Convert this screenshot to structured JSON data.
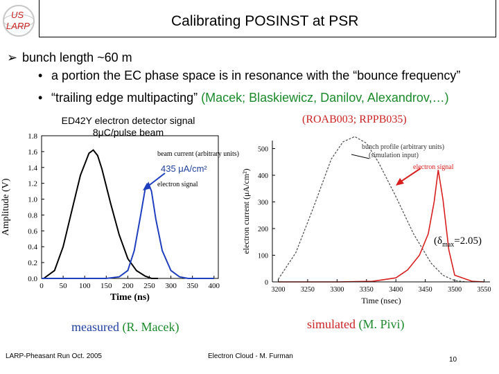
{
  "logo": {
    "line1": "US",
    "line2": "LARP"
  },
  "title": "Calibrating POSINST at PSR",
  "bullet_main": "bunch length ~60 m",
  "sub_bullets": [
    {
      "text": "a portion the EC phase space is in resonance with the “bounce frequency”",
      "attribution": ""
    },
    {
      "text": "“trailing edge multipacting”",
      "attribution": "(Macek; Blaskiewicz, Danilov, Alexandrov,…)"
    }
  ],
  "left_panel": {
    "caption_line1": "ED42Y electron detector signal",
    "caption_line2": "8μC/pulse beam",
    "annotation": "435 μA/cm²",
    "legend_beam": "beam current (arbitrary units)",
    "legend_electron": "electron signal",
    "bottom_label_main": "measured",
    "bottom_label_source": "(R. Macek)"
  },
  "right_panel": {
    "refs": "(ROAB003; RPPB035)",
    "legend_bunch_1": "bunch profile (arbitrary units)",
    "legend_bunch_2": "(simulation input)",
    "legend_electron": "electron signal",
    "delta_prefix": "(δ",
    "delta_sub": "max",
    "delta_suffix": "=2.05)",
    "bottom_label_main": "simulated",
    "bottom_label_source": "(M. Pivi)"
  },
  "chart_data": [
    {
      "type": "line",
      "xlabel": "Time (ns)",
      "ylabel": "Amplitude (V)",
      "xlim": [
        0,
        410
      ],
      "ylim": [
        0,
        1.8
      ],
      "x_ticks": [
        "0",
        "50",
        "100",
        "150",
        "200",
        "250",
        "300",
        "350",
        "400"
      ],
      "y_ticks": [
        "0.0",
        "0.2",
        "0.4",
        "0.6",
        "0.8",
        "1.0",
        "1.2",
        "1.4",
        "1.6",
        "1.8"
      ],
      "series": [
        {
          "name": "beam current (arbitrary units)",
          "color": "#000000",
          "x": [
            5,
            30,
            50,
            70,
            90,
            110,
            120,
            130,
            140,
            160,
            180,
            200,
            220,
            240,
            255,
            270
          ],
          "y": [
            0.0,
            0.1,
            0.4,
            0.85,
            1.3,
            1.58,
            1.62,
            1.55,
            1.38,
            0.95,
            0.55,
            0.25,
            0.1,
            0.03,
            0.0,
            0.0
          ]
        },
        {
          "name": "electron signal",
          "color": "#1f3fbf",
          "x": [
            0,
            150,
            180,
            200,
            215,
            230,
            240,
            248,
            255,
            265,
            280,
            300,
            320,
            340,
            360,
            380,
            400
          ],
          "y": [
            0.0,
            0.0,
            0.02,
            0.1,
            0.35,
            0.8,
            1.12,
            1.2,
            1.1,
            0.75,
            0.35,
            0.1,
            0.02,
            0.0,
            0.0,
            0.0,
            0.0
          ]
        }
      ]
    },
    {
      "type": "line",
      "xlabel": "Time (nsec)",
      "ylabel": "electron current (μA/cm²)",
      "xlim": [
        3190,
        3560
      ],
      "ylim": [
        0,
        530
      ],
      "x_ticks": [
        "3200",
        "3250",
        "3300",
        "3350",
        "3400",
        "3450",
        "3500",
        "3550"
      ],
      "y_ticks": [
        "0",
        "100",
        "200",
        "300",
        "400",
        "500"
      ],
      "series": [
        {
          "name": "bunch profile (arbitrary units)",
          "color": "#555555",
          "x": [
            3200,
            3230,
            3260,
            3290,
            3310,
            3330,
            3350,
            3370,
            3400,
            3430,
            3460,
            3480,
            3500,
            3520
          ],
          "y": [
            10,
            110,
            280,
            460,
            525,
            545,
            520,
            450,
            320,
            180,
            70,
            25,
            5,
            0
          ]
        },
        {
          "name": "electron signal",
          "color": "#d81e1e",
          "x": [
            3200,
            3300,
            3360,
            3400,
            3420,
            3440,
            3455,
            3465,
            3472,
            3480,
            3490,
            3500,
            3530,
            3550
          ],
          "y": [
            0,
            0,
            2,
            15,
            45,
            100,
            180,
            300,
            420,
            310,
            120,
            25,
            2,
            0
          ]
        }
      ]
    }
  ],
  "footer": {
    "left": "LARP-Pheasant Run Oct. 2005",
    "center": "Electron Cloud - M. Furman",
    "page": "10"
  }
}
